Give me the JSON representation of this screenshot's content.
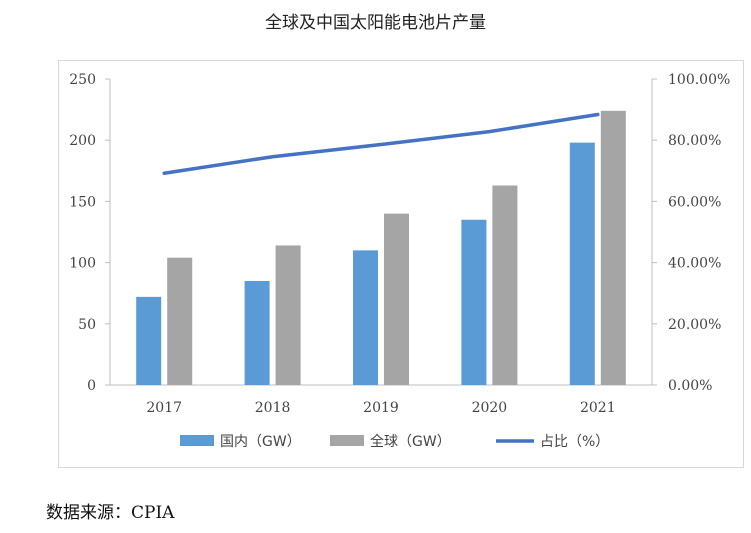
{
  "chart_data": {
    "type": "bar",
    "title": "全球及中国太阳能电池片产量",
    "categories": [
      "2017",
      "2018",
      "2019",
      "2020",
      "2021"
    ],
    "series": [
      {
        "name": "国内（GW）",
        "type": "bar",
        "axis": "left",
        "color": "#5b9bd5",
        "values": [
          72,
          85,
          110,
          135,
          198
        ]
      },
      {
        "name": "全球（GW）",
        "type": "bar",
        "axis": "left",
        "color": "#a5a5a5",
        "values": [
          104,
          114,
          140,
          163,
          224
        ]
      },
      {
        "name": "占比（%）",
        "type": "line",
        "axis": "right",
        "color": "#4472c4",
        "values": [
          69.2,
          74.6,
          78.6,
          82.8,
          88.4
        ]
      }
    ],
    "left_axis": {
      "min": 0,
      "max": 250,
      "ticks": [
        "0",
        "50",
        "100",
        "150",
        "200",
        "250"
      ]
    },
    "right_axis": {
      "min": 0,
      "max": 100,
      "ticks": [
        "0.00%",
        "20.00%",
        "40.00%",
        "60.00%",
        "80.00%",
        "100.00%"
      ]
    },
    "grid": false,
    "legend_position": "bottom"
  },
  "source_note": "数据来源：CPIA"
}
